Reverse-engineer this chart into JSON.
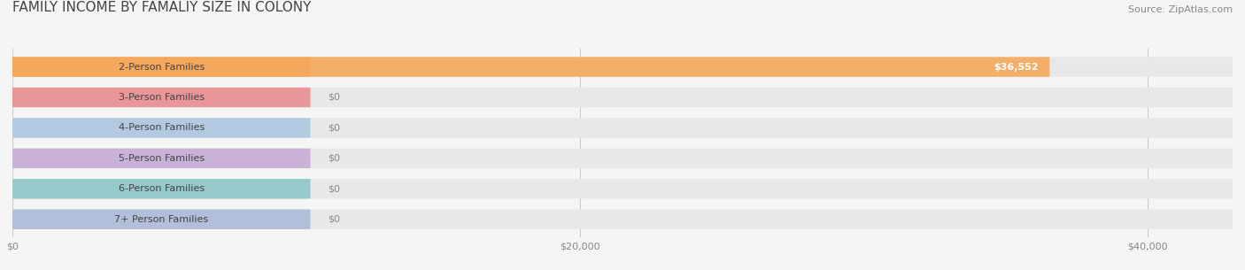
{
  "title": "FAMILY INCOME BY FAMALIY SIZE IN COLONY",
  "source": "Source: ZipAtlas.com",
  "categories": [
    "2-Person Families",
    "3-Person Families",
    "4-Person Families",
    "5-Person Families",
    "6-Person Families",
    "7+ Person Families"
  ],
  "values": [
    36552,
    0,
    0,
    0,
    0,
    0
  ],
  "bar_colors": [
    "#F5A85A",
    "#E8888A",
    "#A8C4E0",
    "#C4A8D4",
    "#88C4C4",
    "#A8B8D8"
  ],
  "value_labels": [
    "$36,552",
    "$0",
    "$0",
    "$0",
    "$0",
    "$0"
  ],
  "xlim": [
    0,
    43000
  ],
  "xticks": [
    0,
    20000,
    40000
  ],
  "xtick_labels": [
    "$0",
    "$20,000",
    "$40,000"
  ],
  "background_color": "#f5f5f5",
  "bar_bg_color": "#e8e8e8",
  "title_fontsize": 11,
  "source_fontsize": 8,
  "bar_label_fontsize": 8,
  "value_label_fontsize": 8
}
